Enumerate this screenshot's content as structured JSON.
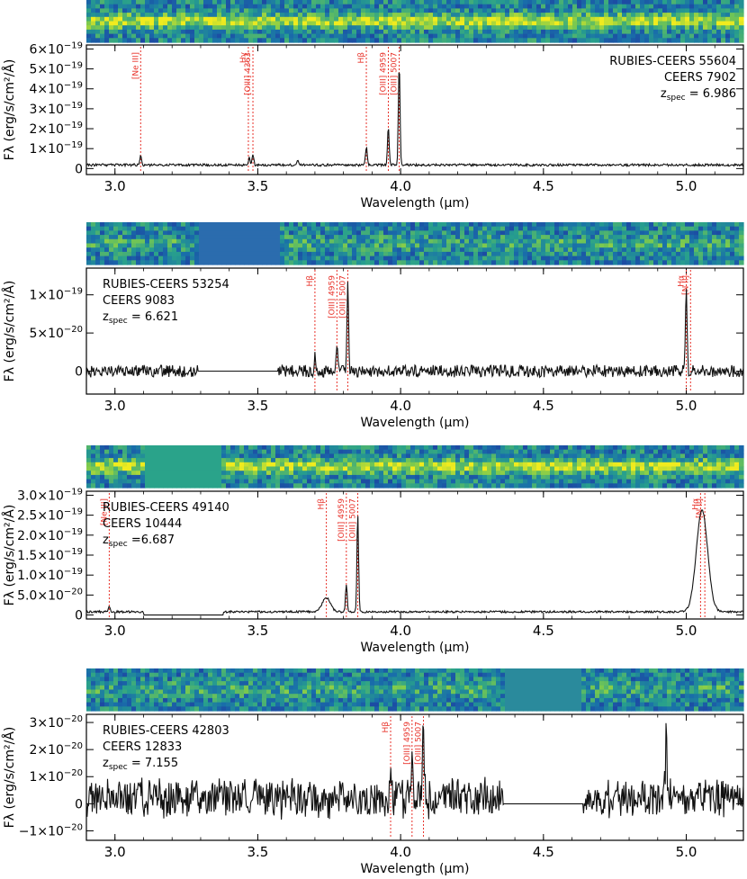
{
  "chart_data": [
    {
      "type": "line",
      "xlabel": "Wavelength (μm)",
      "ylabel": "Fλ (erg/s/cm²/Å)",
      "xlim": [
        2.9,
        5.2
      ],
      "ylim": [
        -3e-20,
        6.2e-19
      ],
      "yticks": [
        "6×10⁻¹⁹",
        "5×10⁻¹⁹",
        "4×10⁻¹⁹",
        "3×10⁻¹⁹",
        "2×10⁻¹⁹",
        "1×10⁻¹⁹",
        "0"
      ],
      "ytick_values": [
        6e-19,
        5e-19,
        4e-19,
        3e-19,
        2e-19,
        1e-19,
        0
      ],
      "xticks": [
        "3.0",
        "3.5",
        "4.0",
        "4.5",
        "5.0"
      ],
      "xtick_values": [
        3.0,
        3.5,
        4.0,
        4.5,
        5.0
      ],
      "info": {
        "name": "RUBIES-CEERS 55604",
        "id": "CEERS 7902",
        "z_label": "z",
        "z_sub": "spec",
        "z_value": "= 6.986",
        "corner": "right"
      },
      "gap": null,
      "emission_lines": [
        {
          "label": "[Ne III]",
          "x": 3.09
        },
        {
          "label": "Hγ",
          "x": 3.467
        },
        {
          "label": "[OIII] 4363",
          "x": 3.483
        },
        {
          "label": "Hβ",
          "x": 3.88
        },
        {
          "label": "[OIII] 4959",
          "x": 3.957
        },
        {
          "label": "[OIII] 5007",
          "x": 3.995
        }
      ],
      "peaks": [
        {
          "x": 3.09,
          "y": 5e-20
        },
        {
          "x": 3.47,
          "y": 4e-20
        },
        {
          "x": 3.483,
          "y": 5e-20
        },
        {
          "x": 3.64,
          "y": 3e-20
        },
        {
          "x": 3.88,
          "y": 9e-20
        },
        {
          "x": 3.957,
          "y": 1.9e-19
        },
        {
          "x": 3.995,
          "y": 5.1e-19
        }
      ],
      "noise": 6e-21,
      "base": 1.8e-20
    },
    {
      "type": "line",
      "xlabel": "Wavelength (μm)",
      "ylabel": "Fλ (erg/s/cm²/Å)",
      "xlim": [
        2.9,
        5.2
      ],
      "ylim": [
        -3e-20,
        1.35e-19
      ],
      "yticks": [
        "1×10⁻¹⁹",
        "5×10⁻²⁰",
        "0"
      ],
      "ytick_values": [
        1e-19,
        5e-20,
        0
      ],
      "xticks": [
        "3.0",
        "3.5",
        "4.0",
        "4.5",
        "5.0"
      ],
      "xtick_values": [
        3.0,
        3.5,
        4.0,
        4.5,
        5.0
      ],
      "info": {
        "name": "RUBIES-CEERS 53254",
        "id": "CEERS 9083",
        "z_label": "z",
        "z_sub": "spec",
        "z_value": "= 6.621",
        "corner": "left"
      },
      "gap": [
        3.29,
        3.57
      ],
      "emission_lines": [
        {
          "label": "Hβ",
          "x": 3.7
        },
        {
          "label": "[OIII] 4959",
          "x": 3.777
        },
        {
          "label": "[OIII] 5007",
          "x": 3.815
        },
        {
          "label": "Hα",
          "x": 5.0
        },
        {
          "label": "[N II]",
          "x": 5.015
        }
      ],
      "peaks": [
        {
          "x": 3.7,
          "y": 1.8e-20
        },
        {
          "x": 3.777,
          "y": 3.6e-20
        },
        {
          "x": 3.815,
          "y": 1.1e-19
        },
        {
          "x": 5.0,
          "y": 1.1e-19
        }
      ],
      "noise": 8e-21,
      "base": 0
    },
    {
      "type": "line",
      "xlabel": "Wavelength (μm)",
      "ylabel": "Fλ (erg/s/cm²/Å)",
      "xlim": [
        2.9,
        5.2
      ],
      "ylim": [
        -1e-20,
        3.1e-19
      ],
      "yticks": [
        "3.0×10⁻¹⁹",
        "2.5×10⁻¹⁹",
        "2.0×10⁻¹⁹",
        "1.5×10⁻¹⁹",
        "1.0×10⁻¹⁹",
        "5.0×10⁻²⁰",
        "0"
      ],
      "ytick_values": [
        3e-19,
        2.5e-19,
        2e-19,
        1.5e-19,
        1e-19,
        5e-20,
        0
      ],
      "xticks": [
        "3.0",
        "3.5",
        "4.0",
        "4.5",
        "5.0"
      ],
      "xtick_values": [
        3.0,
        3.5,
        4.0,
        4.5,
        5.0
      ],
      "info": {
        "name": "RUBIES-CEERS 49140",
        "id": "CEERS 10444",
        "z_label": "z",
        "z_sub": "spec",
        "z_value": "=6.687",
        "corner": "left"
      },
      "gap": [
        3.1,
        3.38
      ],
      "emission_lines": [
        {
          "label": "[Ne III]",
          "x": 2.98
        },
        {
          "label": "Hβ",
          "x": 3.74
        },
        {
          "label": "[OIII] 4959",
          "x": 3.81
        },
        {
          "label": "[OIII] 5007",
          "x": 3.85
        },
        {
          "label": "Hα",
          "x": 5.05
        },
        {
          "label": "[N II]",
          "x": 5.065
        }
      ],
      "peaks": [
        {
          "x": 2.98,
          "y": 1.2e-20
        },
        {
          "x": 3.81,
          "y": 7e-20
        },
        {
          "x": 3.85,
          "y": 2.45e-19
        }
      ],
      "broad": [
        {
          "x": 3.74,
          "y": 3.5e-20,
          "w": 0.02
        },
        {
          "x": 5.055,
          "y": 2.55e-19,
          "w": 0.028
        }
      ],
      "noise": 2.5e-21,
      "base": 8e-21
    },
    {
      "type": "line",
      "xlabel": "Wavelength (μm)",
      "ylabel": "Fλ (erg/s/cm²/Å)",
      "xlim": [
        2.9,
        5.2
      ],
      "ylim": [
        -1.35e-20,
        3.3e-20
      ],
      "yticks": [
        "3×10⁻²⁰",
        "2×10⁻²⁰",
        "1×10⁻²⁰",
        "0",
        "−1×10⁻²⁰"
      ],
      "ytick_values": [
        3e-20,
        2e-20,
        1e-20,
        0,
        -1e-20
      ],
      "xticks": [
        "3.0",
        "3.5",
        "4.0",
        "4.5",
        "5.0"
      ],
      "xtick_values": [
        3.0,
        3.5,
        4.0,
        4.5,
        5.0
      ],
      "info": {
        "name": "RUBIES-CEERS 42803",
        "id": "CEERS 12833",
        "z_label": "z",
        "z_sub": "spec",
        "z_value": "= 7.155",
        "corner": "left"
      },
      "gap": [
        4.36,
        4.64
      ],
      "emission_lines": [
        {
          "label": "Hβ",
          "x": 3.965
        },
        {
          "label": "[OIII] 4959",
          "x": 4.04
        },
        {
          "label": "[OIII] 5007",
          "x": 4.08
        }
      ],
      "peaks": [
        {
          "x": 3.965,
          "y": 1.6e-20
        },
        {
          "x": 4.04,
          "y": 2e-20
        },
        {
          "x": 4.08,
          "y": 2.8e-20
        },
        {
          "x": 4.93,
          "y": 2.6e-20
        }
      ],
      "noise": 5e-21,
      "base": 2e-21
    }
  ]
}
